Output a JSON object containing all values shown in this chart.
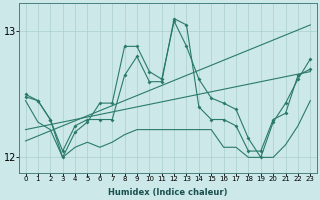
{
  "xlabel": "Humidex (Indice chaleur)",
  "ylabel": "",
  "x_values": [
    0,
    1,
    2,
    3,
    4,
    5,
    6,
    7,
    8,
    9,
    10,
    11,
    12,
    13,
    14,
    15,
    16,
    17,
    18,
    19,
    20,
    21,
    22,
    23
  ],
  "line1": [
    12.5,
    12.45,
    12.3,
    12.05,
    12.25,
    12.3,
    12.3,
    12.3,
    12.65,
    12.8,
    12.6,
    12.6,
    13.1,
    13.05,
    12.4,
    12.3,
    12.3,
    12.25,
    12.05,
    12.05,
    12.3,
    12.35,
    12.65,
    12.7
  ],
  "line2": [
    12.48,
    12.45,
    12.3,
    12.0,
    12.2,
    12.28,
    12.43,
    12.43,
    12.88,
    12.88,
    12.68,
    12.62,
    13.08,
    12.88,
    12.62,
    12.47,
    12.43,
    12.38,
    12.15,
    12.0,
    12.28,
    12.43,
    12.62,
    12.78
  ],
  "line3_straight": [
    12.22,
    12.24,
    12.26,
    12.28,
    12.3,
    12.32,
    12.34,
    12.36,
    12.38,
    12.4,
    12.42,
    12.44,
    12.46,
    12.48,
    12.5,
    12.52,
    12.54,
    12.56,
    12.58,
    12.6,
    12.62,
    12.64,
    12.66,
    12.68
  ],
  "line4_straight": [
    12.13,
    12.17,
    12.21,
    12.25,
    12.29,
    12.33,
    12.37,
    12.41,
    12.45,
    12.49,
    12.53,
    12.57,
    12.61,
    12.65,
    12.69,
    12.73,
    12.77,
    12.81,
    12.85,
    12.89,
    12.93,
    12.97,
    13.01,
    13.05
  ],
  "line5_low": [
    12.45,
    12.28,
    12.22,
    12.0,
    12.08,
    12.12,
    12.08,
    12.12,
    12.18,
    12.22,
    12.22,
    12.22,
    12.22,
    12.22,
    12.22,
    12.22,
    12.08,
    12.08,
    12.0,
    12.0,
    12.0,
    12.1,
    12.25,
    12.45
  ],
  "line_color": "#2a7a6a",
  "bg_color": "#cce8e8",
  "grid_color_major": "#aacfcf",
  "ylim": [
    11.88,
    13.22
  ],
  "yticks": [
    12,
    13
  ]
}
